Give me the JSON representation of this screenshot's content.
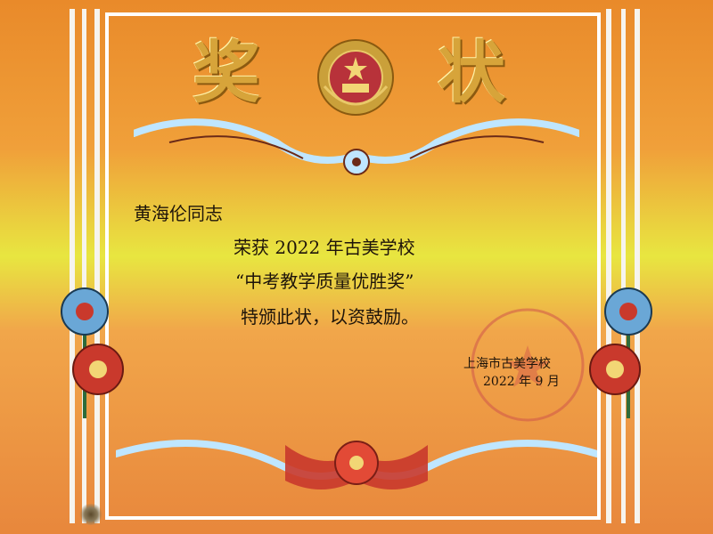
{
  "certificate": {
    "title_left": "奖",
    "title_right": "状",
    "recipient": "黄海伦同志",
    "line1": "荣获 2022 年古美学校",
    "line2": "“中考教学质量优胜奖”",
    "line3": "特颁此状，以资鼓励。",
    "issuer": "上海市古美学校",
    "date": "2022 年 9 月",
    "seal_text": "古美学"
  },
  "colors": {
    "orange": "#e98a2a",
    "yellow": "#e8e640",
    "stripe": "#f6f4ee",
    "gold": "#d7a43a",
    "red": "#c9392c",
    "blue_ornament": "#9fd2f0"
  },
  "icons": [
    "national-emblem-icon",
    "phoenix-ornament-icon",
    "flower-bouquet-icon",
    "seal-icon",
    "ribbon-flower-icon"
  ]
}
